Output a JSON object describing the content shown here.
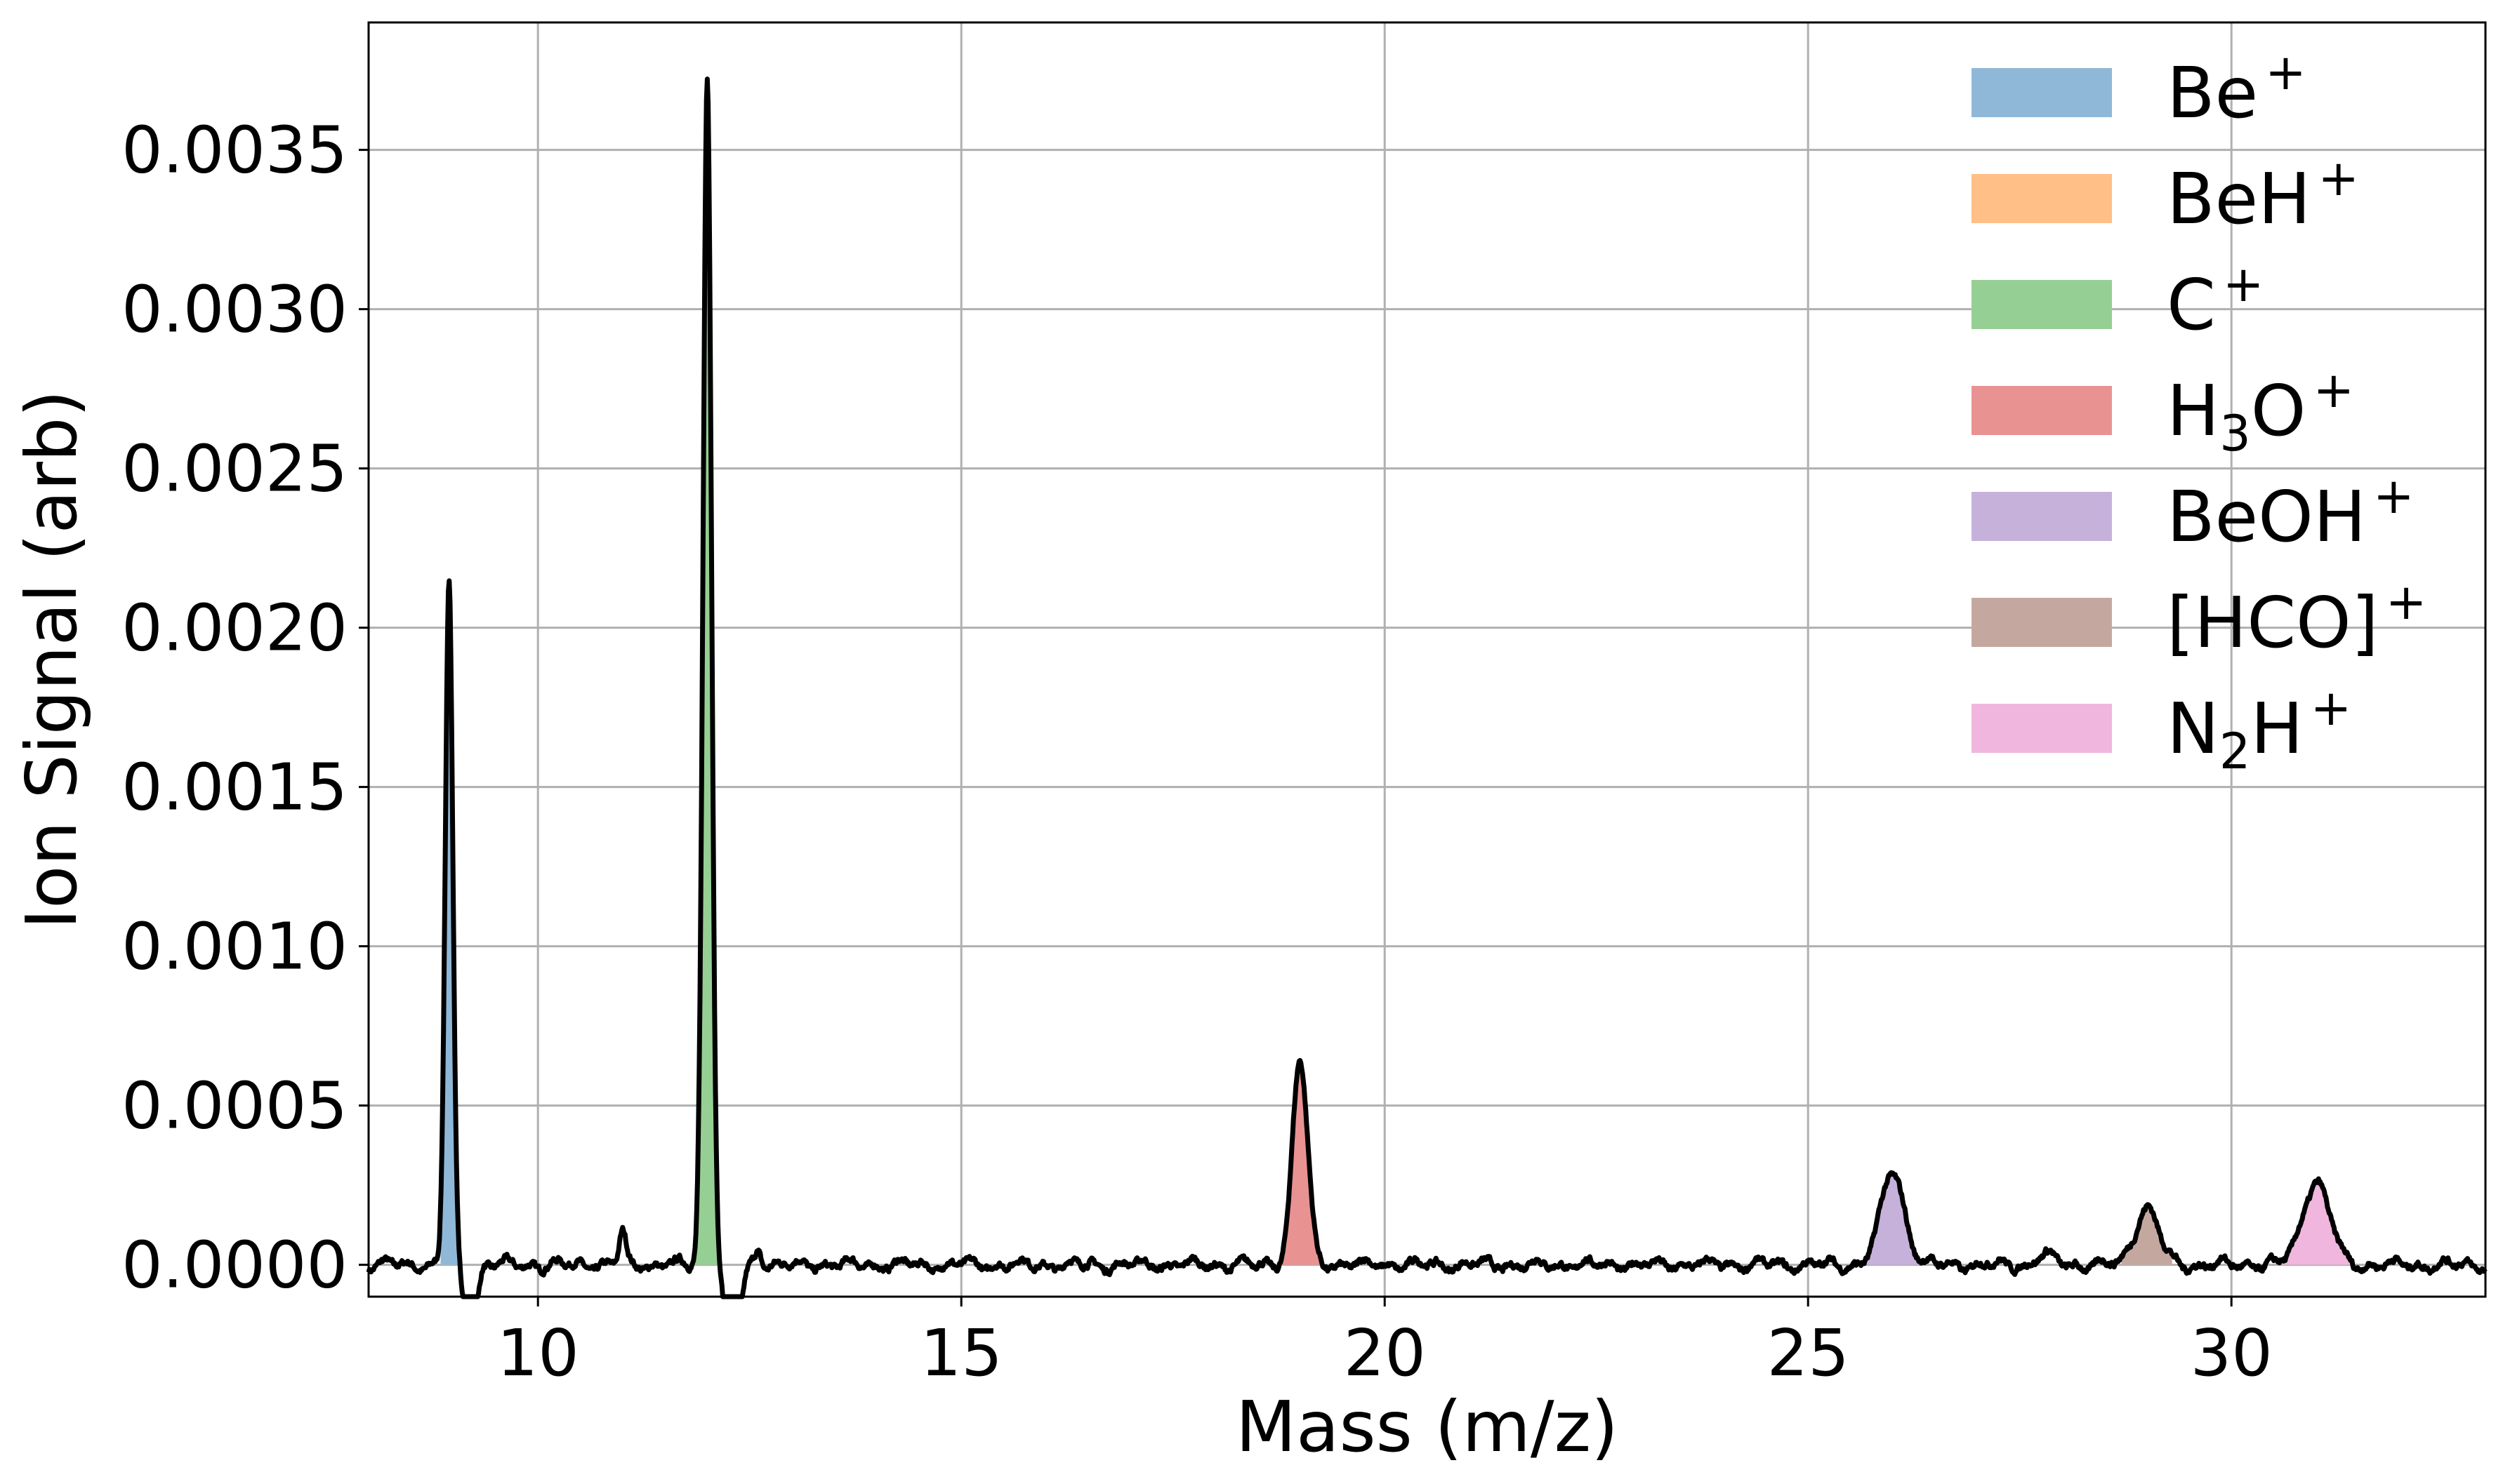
{
  "chart_data": {
    "type": "area",
    "title": "",
    "xlabel": "Mass (m/z)",
    "ylabel": "Ion Signal (arb)",
    "xlim": [
      8,
      33
    ],
    "ylim": [
      -0.0001,
      0.0039
    ],
    "xticks": [
      10,
      15,
      20,
      25,
      30
    ],
    "xtick_labels": [
      "10",
      "15",
      "20",
      "25",
      "30"
    ],
    "yticks": [
      0.0,
      0.0005,
      0.001,
      0.0015,
      0.002,
      0.0025,
      0.003,
      0.0035
    ],
    "ytick_labels": [
      "0.0000",
      "0.0005",
      "0.0010",
      "0.0015",
      "0.0020",
      "0.0025",
      "0.0030",
      "0.0035"
    ],
    "grid": true,
    "legend_position": "top-right",
    "line_color": "#000000",
    "baseline": 0.0,
    "noise_level": 2e-05,
    "negative_dips": [
      {
        "center": 9.2,
        "depth": 0.00035,
        "width": 0.06
      },
      {
        "center": 12.3,
        "depth": 0.00045,
        "width": 0.07
      }
    ],
    "small_peaks": [
      {
        "center": 11.0,
        "height": 0.0001,
        "width": 0.04
      },
      {
        "center": 12.6,
        "height": 5e-05,
        "width": 0.04
      },
      {
        "center": 27.8,
        "height": 3e-05,
        "width": 0.1
      }
    ],
    "series": [
      {
        "name": "Be",
        "charge": "+",
        "color": "#8fb8d8",
        "center": 8.95,
        "height": 0.00213,
        "width": 0.045,
        "fill_range": [
          8.85,
          9.1
        ]
      },
      {
        "name": "BeH",
        "charge": "+",
        "color": "#ffbf86",
        "center": 10.0,
        "height": 0.0,
        "width": 0.05,
        "fill_range": [
          9.9,
          10.1
        ]
      },
      {
        "name": "C",
        "charge": "+",
        "color": "#96cf93",
        "center": 12.0,
        "height": 0.00373,
        "width": 0.05,
        "fill_range": [
          11.8,
          12.25
        ]
      },
      {
        "name": "H3O",
        "charge": "+",
        "color": "#e99292",
        "center": 19.0,
        "height": 0.00064,
        "width": 0.09,
        "fill_range": [
          18.75,
          19.3
        ]
      },
      {
        "name": "BeOH",
        "charge": "+",
        "color": "#c6b1db",
        "center": 26.0,
        "height": 0.00029,
        "width": 0.14,
        "fill_range": [
          25.7,
          26.3
        ]
      },
      {
        "name": "[HCO]",
        "charge": "+",
        "color": "#c4a8a0",
        "center": 29.0,
        "height": 0.00018,
        "width": 0.14,
        "fill_range": [
          28.7,
          29.3
        ]
      },
      {
        "name": "N2H",
        "charge": "+",
        "color": "#f0b6dd",
        "center": 31.0,
        "height": 0.00026,
        "width": 0.16,
        "fill_range": [
          30.6,
          31.4
        ]
      }
    ]
  }
}
